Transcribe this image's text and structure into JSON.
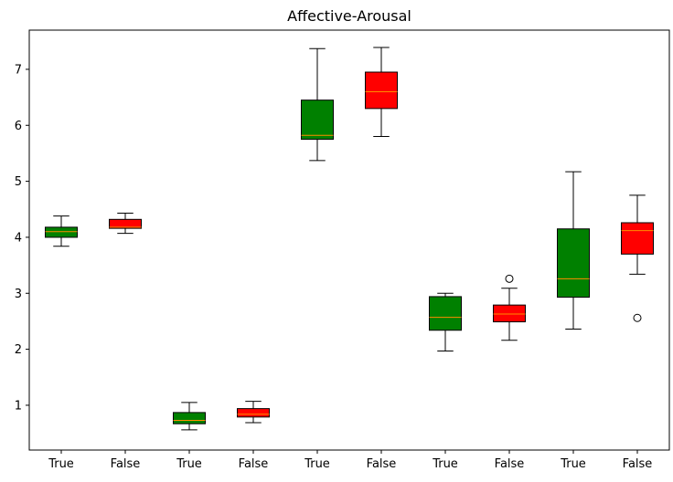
{
  "chart_data": {
    "type": "box",
    "title": "Affective-Arousal",
    "xlabel": "",
    "ylabel": "",
    "ylim": [
      0.2,
      7.7
    ],
    "yticks": [
      "1",
      "2",
      "3",
      "4",
      "5",
      "6",
      "7"
    ],
    "ytick_values": [
      1,
      2,
      3,
      4,
      5,
      6,
      7
    ],
    "colors": {
      "True": "#008000",
      "False": "#ff0000",
      "median": "#ff8c00"
    },
    "boxes": [
      {
        "label": "True",
        "whisker_low": 3.84,
        "q1": 4.0,
        "median": 4.1,
        "q3": 4.18,
        "whisker_high": 4.38,
        "outliers": []
      },
      {
        "label": "False",
        "whisker_low": 4.07,
        "q1": 4.16,
        "median": 4.18,
        "q3": 4.32,
        "whisker_high": 4.43,
        "outliers": []
      },
      {
        "label": "True",
        "whisker_low": 0.56,
        "q1": 0.67,
        "median": 0.73,
        "q3": 0.87,
        "whisker_high": 1.05,
        "outliers": []
      },
      {
        "label": "False",
        "whisker_low": 0.69,
        "q1": 0.79,
        "median": 0.84,
        "q3": 0.94,
        "whisker_high": 1.07,
        "outliers": []
      },
      {
        "label": "True",
        "whisker_low": 5.37,
        "q1": 5.75,
        "median": 5.82,
        "q3": 6.45,
        "whisker_high": 7.37,
        "outliers": []
      },
      {
        "label": "False",
        "whisker_low": 5.8,
        "q1": 6.3,
        "median": 6.6,
        "q3": 6.95,
        "whisker_high": 7.39,
        "outliers": []
      },
      {
        "label": "True",
        "whisker_low": 1.97,
        "q1": 2.34,
        "median": 2.57,
        "q3": 2.94,
        "whisker_high": 3.0,
        "outliers": []
      },
      {
        "label": "False",
        "whisker_low": 2.16,
        "q1": 2.49,
        "median": 2.63,
        "q3": 2.79,
        "whisker_high": 3.09,
        "outliers": [
          3.26
        ]
      },
      {
        "label": "True",
        "whisker_low": 2.36,
        "q1": 2.93,
        "median": 3.26,
        "q3": 4.15,
        "whisker_high": 5.17,
        "outliers": []
      },
      {
        "label": "False",
        "whisker_low": 3.34,
        "q1": 3.7,
        "median": 4.12,
        "q3": 4.26,
        "whisker_high": 4.75,
        "outliers": [
          2.56
        ]
      }
    ]
  }
}
